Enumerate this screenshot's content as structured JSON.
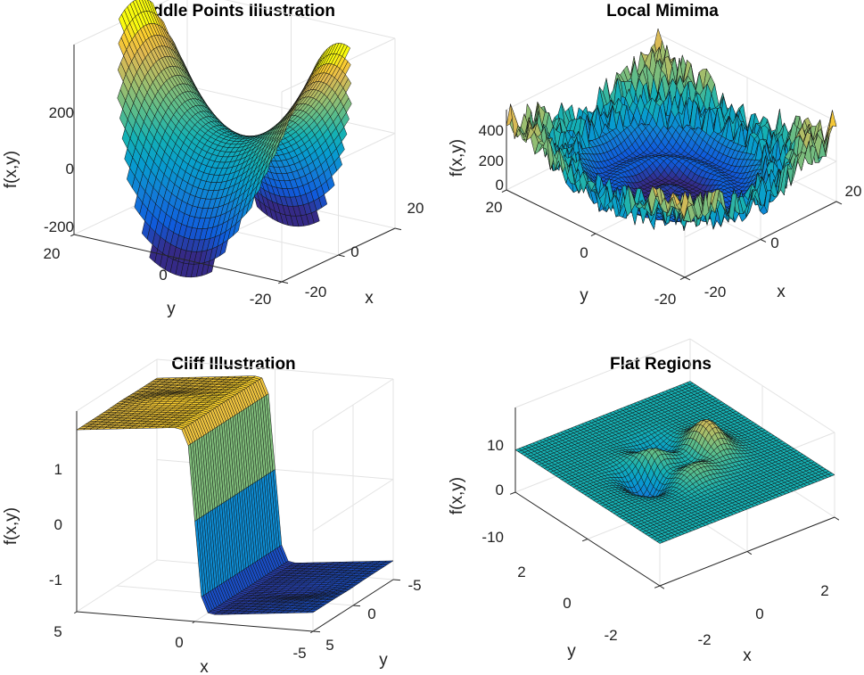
{
  "chart_data": [
    {
      "type": "surface",
      "title": "Saddle Points Illustration",
      "xlabel": "x",
      "ylabel": "y",
      "zlabel": "f(x,y)",
      "function": "x^2 - y^2 (mesh shown on a circular x,y domain of radius 20)",
      "xlim": [
        -20,
        20
      ],
      "ylim": [
        -20,
        20
      ],
      "zlim": [
        -300,
        300
      ],
      "xticks": [
        "-20",
        "0",
        "20"
      ],
      "yticks": [
        "-20",
        "0",
        "20"
      ],
      "zticks": [
        "-200",
        "0",
        "200"
      ],
      "grid": "on",
      "colormap": "parula"
    },
    {
      "type": "surface",
      "title": "Local Mimima",
      "xlabel": "x",
      "ylabel": "y",
      "zlabel": "f(x,y)",
      "function": "bowl r^2 with concentric ripples and noisy spikes near the rim",
      "xlim": [
        -20,
        20
      ],
      "ylim": [
        -20,
        20
      ],
      "zlim": [
        0,
        400
      ],
      "xticks": [
        "-20",
        "0",
        "20"
      ],
      "yticks": [
        "-20",
        "0",
        "20"
      ],
      "zticks": [
        "0",
        "200",
        "400"
      ],
      "grid": "on",
      "colormap": "parula"
    },
    {
      "type": "surface",
      "title": "Cliff Illustration",
      "xlabel": "x",
      "ylabel": "y",
      "zlabel": "f(x,y)",
      "function": "step (cliff) along x = 0 from ~1.5 down to ~-1.5",
      "xlim": [
        -5,
        5
      ],
      "ylim": [
        -5,
        5
      ],
      "zlim": [
        -1.6,
        1.6
      ],
      "xticks": [
        "-5",
        "0",
        "5"
      ],
      "yticks": [
        "-5",
        "0",
        "5"
      ],
      "zticks": [
        "-1",
        "0",
        "1"
      ],
      "grid": "on",
      "colormap": "parula"
    },
    {
      "type": "surface",
      "title": "Flat Regions",
      "xlabel": "x",
      "ylabel": "y",
      "zlabel": "f(x,y)",
      "function": "peaks-like bumps near the origin on an otherwise flat plane",
      "xlim": [
        -3,
        3
      ],
      "ylim": [
        -3,
        3
      ],
      "zlim": [
        -12,
        12
      ],
      "xticks": [
        "-2",
        "0",
        "2"
      ],
      "yticks": [
        "-2",
        "0",
        "2"
      ],
      "zticks": [
        "-10",
        "0",
        "10"
      ],
      "grid": "on",
      "colormap": "parula"
    }
  ],
  "colors": {
    "parula_low": "#352a87",
    "parula_mid": "#1fa9c9",
    "parula_high": "#f9fb0e"
  }
}
